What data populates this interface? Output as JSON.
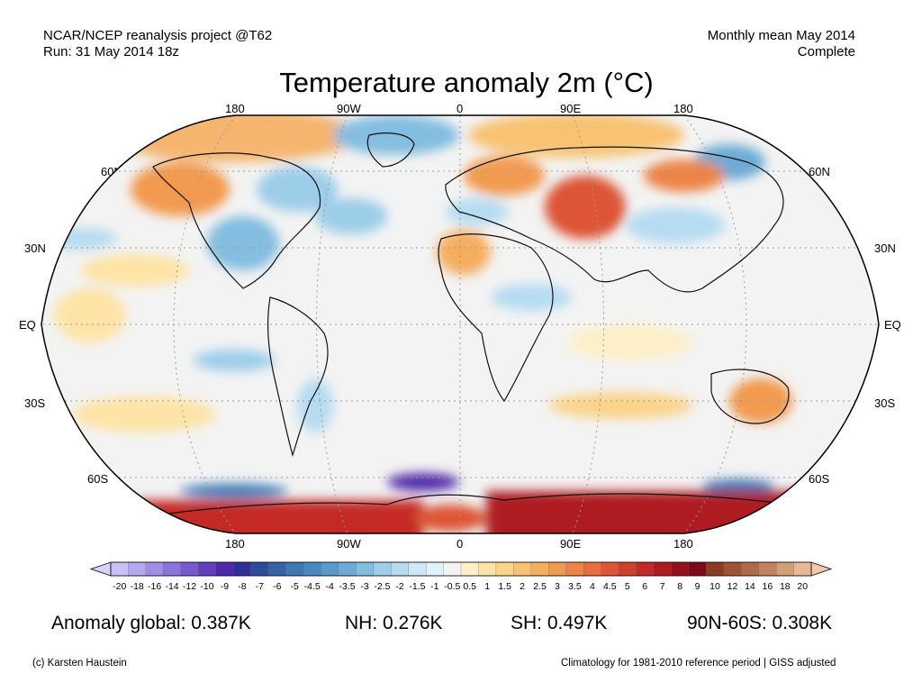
{
  "header": {
    "left_line1": "NCAR/NCEP reanalysis project @T62",
    "left_line2": "Run: 31 May 2014 18z",
    "right_line1": "Monthly mean May 2014",
    "right_line2": "Complete"
  },
  "title": "Temperature anomaly 2m (°C)",
  "map": {
    "lon_labels": [
      "180",
      "90W",
      "0",
      "90E",
      "180"
    ],
    "lat_labels": [
      "60N",
      "30N",
      "EQ",
      "30S",
      "60S"
    ]
  },
  "colorbar": {
    "labels": [
      "-20",
      "-18",
      "-16",
      "-14",
      "-12",
      "-10",
      "-9",
      "-8",
      "-7",
      "-6",
      "-5",
      "-4.5",
      "-4",
      "-3.5",
      "-3",
      "-2.5",
      "-2",
      "-1.5",
      "-1",
      "-0.5",
      "0.5",
      "1",
      "1.5",
      "2",
      "2.5",
      "3",
      "3.5",
      "4",
      "4.5",
      "5",
      "6",
      "7",
      "8",
      "9",
      "10",
      "12",
      "14",
      "16",
      "18",
      "20"
    ],
    "colors": [
      "#c9c1f5",
      "#b6a8ee",
      "#a08de6",
      "#8c74dc",
      "#7759cf",
      "#623fc0",
      "#4f2aa8",
      "#2f2f98",
      "#2e4a9c",
      "#3563a6",
      "#3e78b4",
      "#4a89c0",
      "#5a9acb",
      "#6dabd6",
      "#83bde0",
      "#9ccde9",
      "#b6dcf1",
      "#cde8f7",
      "#e2f2fb",
      "#f3f3f3",
      "#fdf0c8",
      "#fde4a6",
      "#fbd48a",
      "#f8c272",
      "#f5ae5f",
      "#f29a50",
      "#ed8446",
      "#e66d3d",
      "#dd5535",
      "#d03e2e",
      "#c32a27",
      "#ae1a22",
      "#96101c",
      "#7c0a16",
      "#8c3a24",
      "#a05234",
      "#b06a48",
      "#c2845e",
      "#d49e78",
      "#e6b896"
    ],
    "under_color": "#d8d2f8",
    "over_color": "#f0c8ad"
  },
  "stats": {
    "global": "Anomaly global: 0.387K",
    "nh": "NH: 0.276K",
    "sh": "SH: 0.497K",
    "arctic": "90N-60S: 0.308K"
  },
  "footer": {
    "credit": "(c) Karsten Haustein",
    "note": "Climatology for 1981-2010 reference period | GISS adjusted"
  }
}
